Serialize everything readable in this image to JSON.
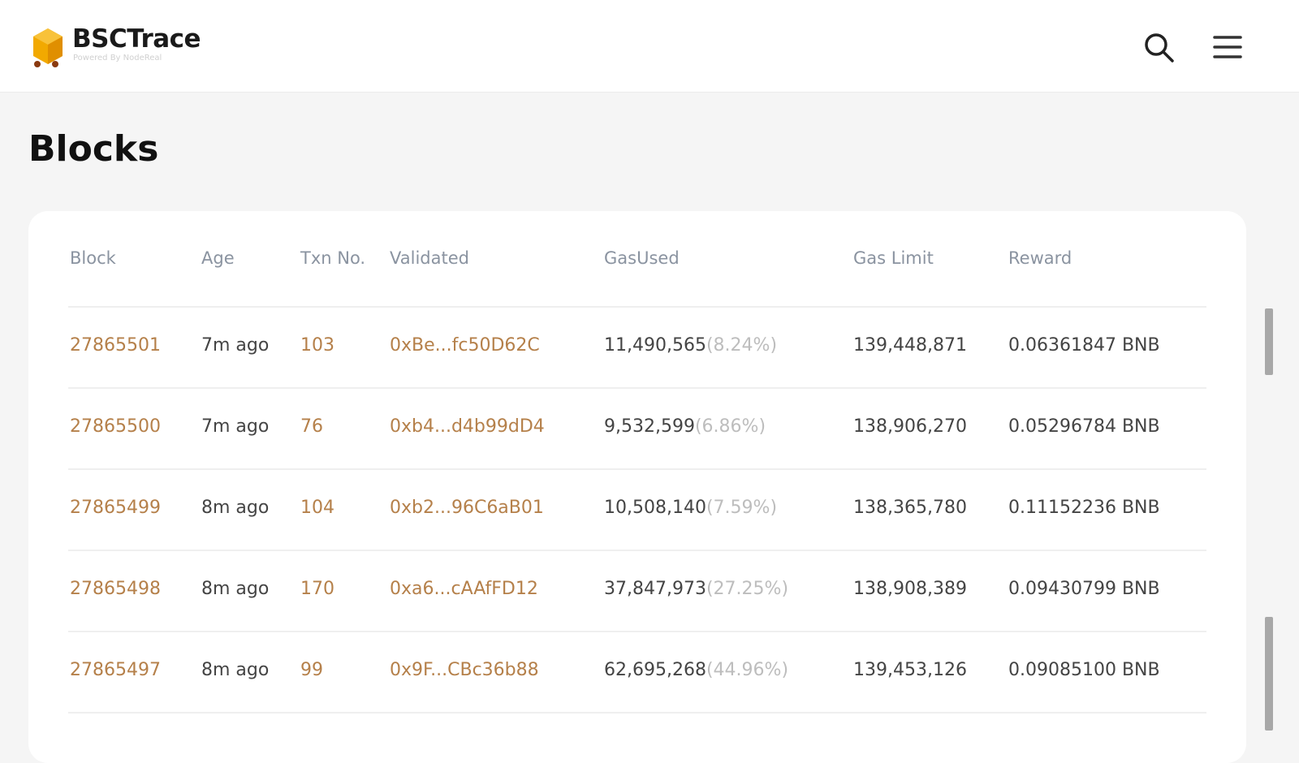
{
  "header": {
    "brand": "BSCTrace",
    "tagline": "Powered By NodeReal"
  },
  "page": {
    "title": "Blocks"
  },
  "table": {
    "columns": [
      "Block",
      "Age",
      "Txn No.",
      "Validated",
      "GasUsed",
      "Gas Limit",
      "Reward"
    ],
    "rows": [
      {
        "block": "27865501",
        "age": "7m ago",
        "txn": "103",
        "validator": "0xBe...fc50D62C",
        "gas_used": "11,490,565",
        "gas_pct": "(8.24%)",
        "gas_limit": "139,448,871",
        "reward": "0.06361847 BNB"
      },
      {
        "block": "27865500",
        "age": "7m ago",
        "txn": "76",
        "validator": "0xb4...d4b99dD4",
        "gas_used": "9,532,599",
        "gas_pct": "(6.86%)",
        "gas_limit": "138,906,270",
        "reward": "0.05296784 BNB"
      },
      {
        "block": "27865499",
        "age": "8m ago",
        "txn": "104",
        "validator": "0xb2...96C6aB01",
        "gas_used": "10,508,140",
        "gas_pct": "(7.59%)",
        "gas_limit": "138,365,780",
        "reward": "0.11152236 BNB"
      },
      {
        "block": "27865498",
        "age": "8m ago",
        "txn": "170",
        "validator": "0xa6...cAAfFD12",
        "gas_used": "37,847,973",
        "gas_pct": "(27.25%)",
        "gas_limit": "138,908,389",
        "reward": "0.09430799 BNB"
      },
      {
        "block": "27865497",
        "age": "8m ago",
        "txn": "99",
        "validator": "0x9F...CBc36b88",
        "gas_used": "62,695,268",
        "gas_pct": "(44.96%)",
        "gas_limit": "139,453,126",
        "reward": "0.09085100 BNB"
      }
    ]
  },
  "colors": {
    "link": "#b5804a",
    "accent": "#f0a500"
  }
}
